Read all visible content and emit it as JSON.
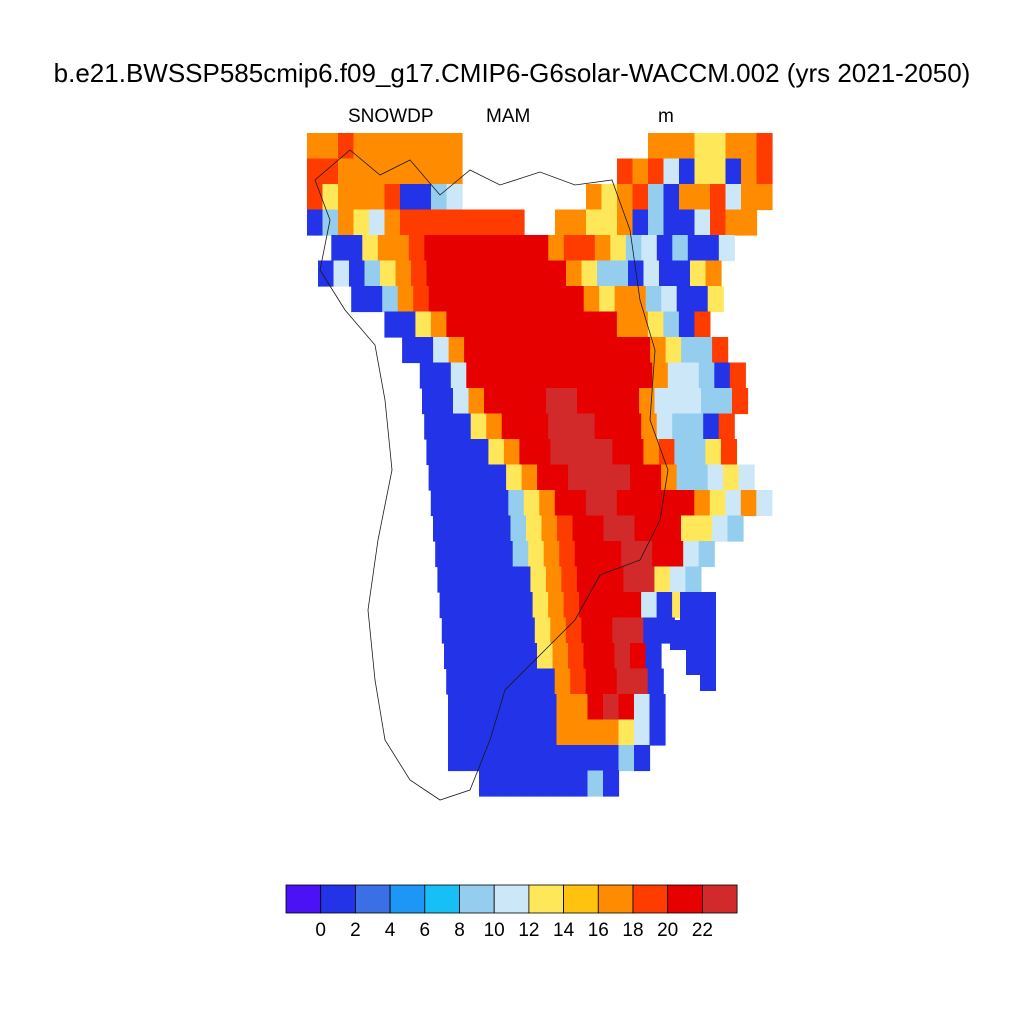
{
  "figure": {
    "title": "b.e21.BWSSP585cmip6.f09_g17.CMIP6-G6solar-WACCM.002 (yrs 2021-2050)",
    "variable": "SNOWDP",
    "season": "MAM",
    "units": "m"
  },
  "colorbar": {
    "colors": [
      "#4b12f5",
      "#2233e8",
      "#3a6fe6",
      "#1e96f5",
      "#16bff5",
      "#94cdee",
      "#cce7f7",
      "#ffe75a",
      "#ffc20e",
      "#ff8c00",
      "#ff3c00",
      "#e60000",
      "#d22a2a"
    ],
    "labels": [
      "0",
      "2",
      "4",
      "6",
      "8",
      "10",
      "12",
      "14",
      "16",
      "18",
      "20",
      "22"
    ]
  },
  "chart_data": {
    "type": "heatmap",
    "title": "b.e21.BWSSP585cmip6.f09_g17.CMIP6-G6solar-WACCM.002 (yrs 2021-2050)",
    "variable": "SNOWDP",
    "season": "MAM",
    "units": "m",
    "levels": [
      0,
      2,
      4,
      6,
      8,
      10,
      12,
      14,
      16,
      18,
      20,
      22
    ],
    "region": "Greenland",
    "grid_rows": [
      {
        "row": 0,
        "cells": "ooroooffoo            fooyyoor"
      },
      {
        "row": 1,
        "cells": "rroooooffo          rfrwbyybor"
      },
      {
        "row": 2,
        "cells": "ryooorbbsw        oyfrsboorwoo"
      },
      {
        "row": 3,
        "cells": "bsoyworrrrrrrr  ooyyobsbbwroo"
      },
      {
        "row": 4,
        "cells": " bbyoorRRRRRRRRorroyswbsbbw"
      },
      {
        "row": 5,
        "cells": "bwbsyorRRRRRRRRRoyssbwbbyo"
      },
      {
        "row": 6,
        "cells": "  bbsorRRRRRRRRRRoyooswbby"
      },
      {
        "row": 7,
        "cells": "    bbyoRRRRRRRRRRRfoysbr"
      },
      {
        "row": 8,
        "cells": "     bbwoRRRRRRRRRRRRoyssr"
      },
      {
        "row": 9,
        "cells": "      bbwRRRRRRRRRRRRowwsbr"
      },
      {
        "row": 10,
        "cells": "      bbwoRRRRDDRRRRowwwssr"
      },
      {
        "row": 11,
        "cells": "      bbbyoRRRDDDRRRowssbr"
      },
      {
        "row": 12,
        "cells": "      bbbbyoRRDDDDRRorssyr"
      },
      {
        "row": 13,
        "cells": "      bbbbbyoRRDDDDRRosswyw"
      },
      {
        "row": 14,
        "cells": "      bbbbbsyoRRDDRRRRRoywow"
      },
      {
        "row": 15,
        "cells": "      bbbbbsyorRRDDRRRyyws"
      },
      {
        "row": 16,
        "cells": "      bbbbbsyorRRRDDRRws"
      },
      {
        "row": 17,
        "cells": "      bbbbbbyorRRRDDyws"
      },
      {
        "row": 18,
        "cells": "      bbbbbbyorRRRRwbyb"
      },
      {
        "row": 19,
        "cells": "      bbbbbbyorRRDDbb"
      },
      {
        "row": 20,
        "cells": "      bbbbbbyorRRDRb"
      },
      {
        "row": 21,
        "cells": "      bbbbbbborRRDDb"
      },
      {
        "row": 22,
        "cells": "      bbbbbbbooRDRwb"
      },
      {
        "row": 23,
        "cells": "      bbbbbbbooooywb"
      },
      {
        "row": 24,
        "cells": "      bbbbbbbbbbbsb"
      },
      {
        "row": 25,
        "cells": "        bbbbbbbsb"
      }
    ]
  }
}
